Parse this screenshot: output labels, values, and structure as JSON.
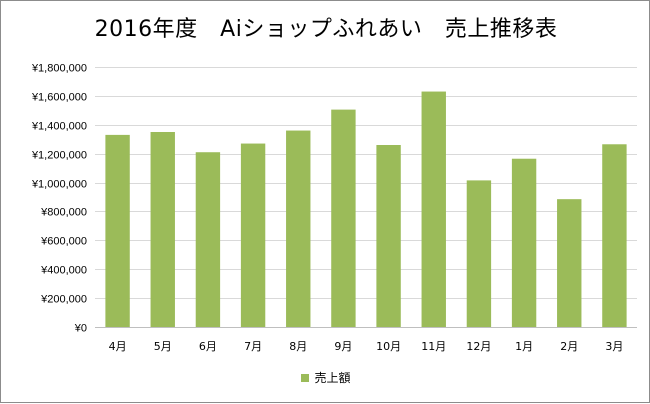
{
  "chart_data": {
    "type": "bar",
    "title": "2016年度　Aiショップふれあい　売上推移表",
    "categories": [
      "4月",
      "5月",
      "6月",
      "7月",
      "8月",
      "9月",
      "10月",
      "11月",
      "12月",
      "1月",
      "2月",
      "3月"
    ],
    "series": [
      {
        "name": "売上額",
        "values": [
          1330000,
          1350000,
          1210000,
          1270000,
          1360000,
          1505000,
          1260000,
          1630000,
          1015000,
          1165000,
          885000,
          1265000
        ]
      }
    ],
    "ylim": [
      0,
      1800000
    ],
    "yticks": [
      0,
      200000,
      400000,
      600000,
      800000,
      1000000,
      1200000,
      1400000,
      1600000,
      1800000
    ],
    "ytick_labels": [
      "¥0",
      "¥200,000",
      "¥400,000",
      "¥600,000",
      "¥800,000",
      "¥1,000,000",
      "¥1,200,000",
      "¥1,400,000",
      "¥1,600,000",
      "¥1,800,000"
    ],
    "grid": true,
    "legend_position": "bottom",
    "colors": {
      "bar": "#9bbb59",
      "grid": "#d9d9d9",
      "axis": "#bfbfbf"
    }
  }
}
